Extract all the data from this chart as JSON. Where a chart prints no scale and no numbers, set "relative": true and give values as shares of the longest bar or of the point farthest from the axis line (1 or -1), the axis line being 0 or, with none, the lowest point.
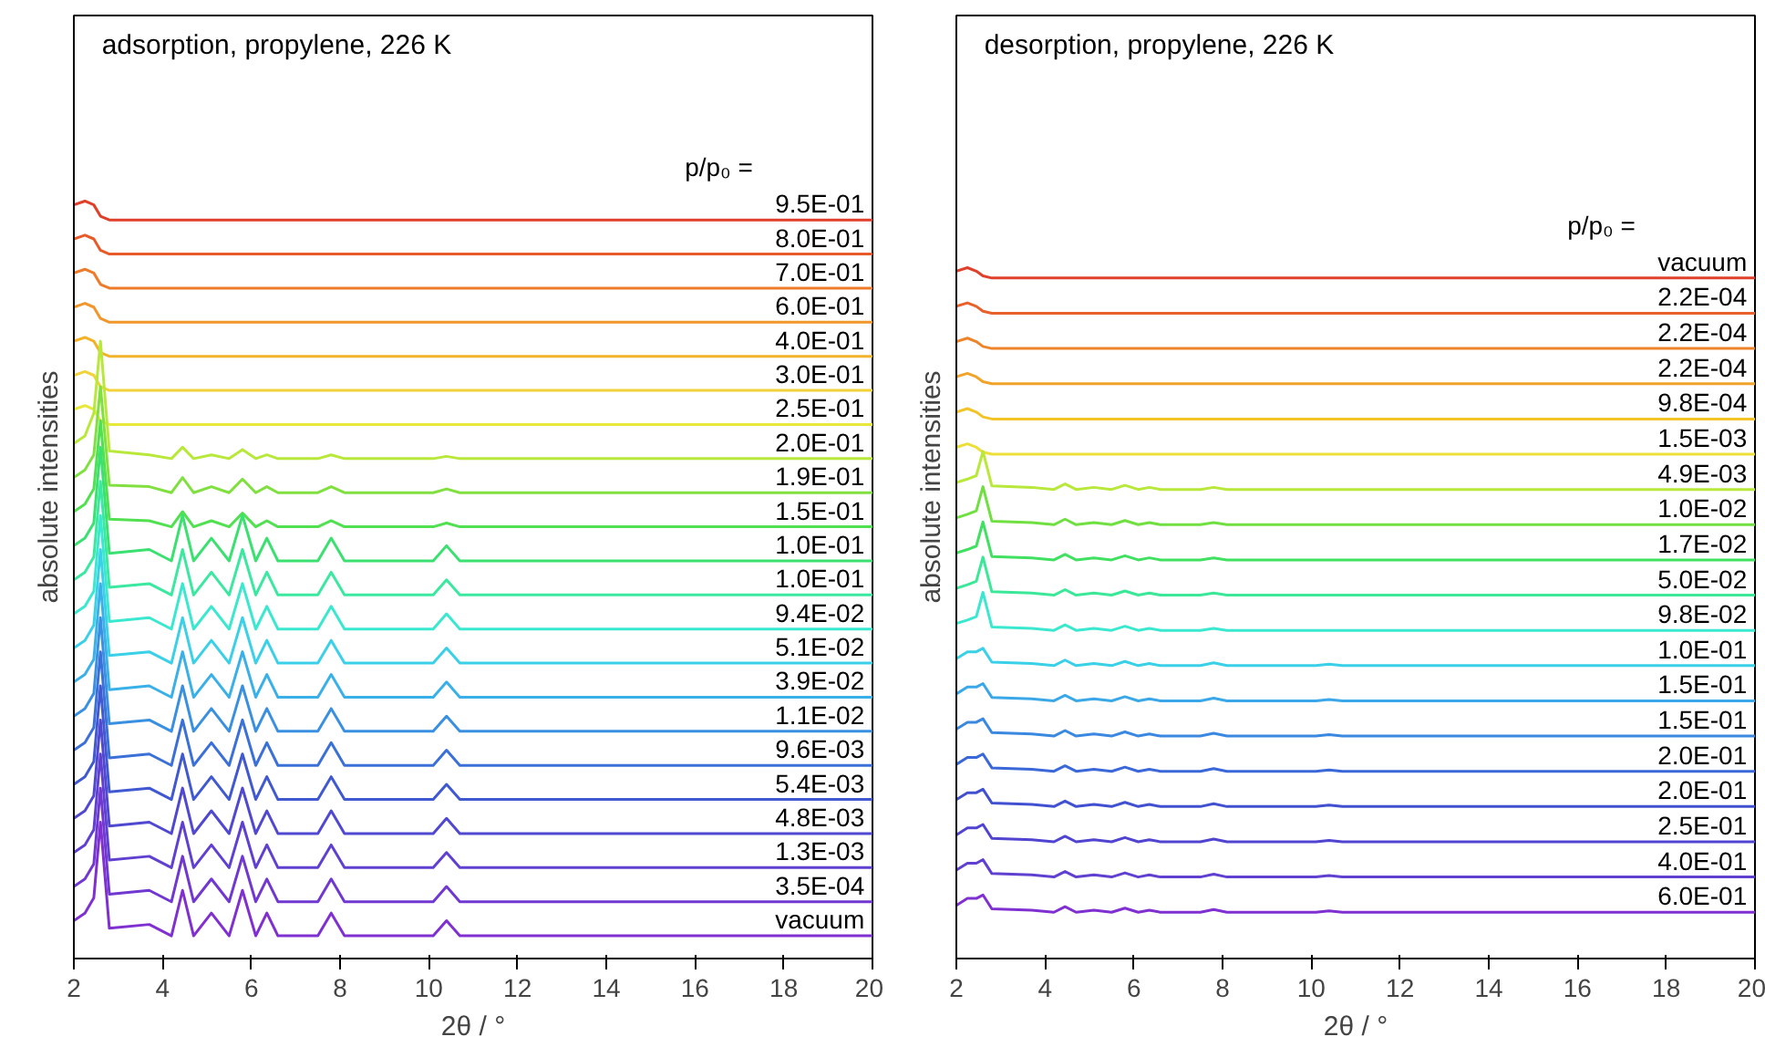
{
  "chart_data": [
    {
      "type": "line",
      "title": "adsorption, propylene, 226 K",
      "xlabel": "2θ / °",
      "ylabel": "absolute intensities",
      "legend_title": "p/p₀ =",
      "relative": true,
      "xlim": [
        2,
        20
      ],
      "xticks": [
        2,
        4,
        6,
        8,
        10,
        12,
        14,
        16,
        18,
        20
      ],
      "x": [
        2,
        2.25,
        2.45,
        2.6,
        2.8,
        3.7,
        4.2,
        4.45,
        4.7,
        5.1,
        5.5,
        5.8,
        6.1,
        6.35,
        6.6,
        7.5,
        7.8,
        8.1,
        10.1,
        10.4,
        10.7,
        20
      ],
      "series": [
        {
          "name": "9.5E-01",
          "color": "#e0402a",
          "values": [
            0.995,
            1.0,
            0.995,
            0.98,
            0.975,
            0.975,
            0.975,
            0.975,
            0.975,
            0.975,
            0.975,
            0.975,
            0.975,
            0.975,
            0.975,
            0.975,
            0.975,
            0.975,
            0.975,
            0.975,
            0.975,
            0.975
          ]
        },
        {
          "name": "8.0E-01",
          "color": "#e85a2a",
          "values": [
            0.95,
            0.955,
            0.95,
            0.935,
            0.93,
            0.93,
            0.93,
            0.93,
            0.93,
            0.93,
            0.93,
            0.93,
            0.93,
            0.93,
            0.93,
            0.93,
            0.93,
            0.93,
            0.93,
            0.93,
            0.93,
            0.93
          ]
        },
        {
          "name": "7.0E-01",
          "color": "#ee7a2a",
          "values": [
            0.905,
            0.91,
            0.905,
            0.89,
            0.885,
            0.885,
            0.885,
            0.885,
            0.885,
            0.885,
            0.885,
            0.885,
            0.885,
            0.885,
            0.885,
            0.885,
            0.885,
            0.885,
            0.885,
            0.885,
            0.885,
            0.885
          ]
        },
        {
          "name": "6.0E-01",
          "color": "#f0962a",
          "values": [
            0.86,
            0.865,
            0.86,
            0.845,
            0.84,
            0.84,
            0.84,
            0.84,
            0.84,
            0.84,
            0.84,
            0.84,
            0.84,
            0.84,
            0.84,
            0.84,
            0.84,
            0.84,
            0.84,
            0.84,
            0.84,
            0.84
          ]
        },
        {
          "name": "4.0E-01",
          "color": "#f2b22a",
          "values": [
            0.815,
            0.82,
            0.815,
            0.8,
            0.795,
            0.795,
            0.795,
            0.795,
            0.795,
            0.795,
            0.795,
            0.795,
            0.795,
            0.795,
            0.795,
            0.795,
            0.795,
            0.795,
            0.795,
            0.795,
            0.795,
            0.795
          ]
        },
        {
          "name": "3.0E-01",
          "color": "#f2d23a",
          "values": [
            0.77,
            0.775,
            0.77,
            0.755,
            0.75,
            0.75,
            0.75,
            0.75,
            0.75,
            0.75,
            0.75,
            0.75,
            0.75,
            0.75,
            0.75,
            0.75,
            0.75,
            0.75,
            0.75,
            0.75,
            0.75,
            0.75
          ]
        },
        {
          "name": "2.5E-01",
          "color": "#e8e83a",
          "values": [
            0.725,
            0.73,
            0.725,
            0.71,
            0.705,
            0.705,
            0.705,
            0.705,
            0.705,
            0.705,
            0.705,
            0.705,
            0.705,
            0.705,
            0.705,
            0.705,
            0.705,
            0.705,
            0.705,
            0.705,
            0.705,
            0.705
          ]
        },
        {
          "name": "2.0E-01",
          "color": "#b8e83a",
          "values": [
            0.68,
            0.69,
            0.72,
            0.815,
            0.67,
            0.665,
            0.66,
            0.675,
            0.66,
            0.665,
            0.66,
            0.672,
            0.66,
            0.665,
            0.66,
            0.66,
            0.665,
            0.66,
            0.66,
            0.663,
            0.66,
            0.66
          ]
        },
        {
          "name": "1.9E-01",
          "color": "#80e040",
          "values": [
            0.635,
            0.645,
            0.665,
            0.755,
            0.625,
            0.623,
            0.615,
            0.635,
            0.615,
            0.623,
            0.615,
            0.633,
            0.615,
            0.623,
            0.615,
            0.615,
            0.623,
            0.615,
            0.615,
            0.62,
            0.615,
            0.615
          ]
        },
        {
          "name": "1.5E-01",
          "color": "#50e050",
          "values": [
            0.59,
            0.6,
            0.62,
            0.71,
            0.58,
            0.578,
            0.57,
            0.59,
            0.57,
            0.578,
            0.57,
            0.588,
            0.57,
            0.578,
            0.57,
            0.57,
            0.578,
            0.57,
            0.57,
            0.575,
            0.57,
            0.57
          ]
        },
        {
          "name": "1.0E-01",
          "color": "#3ae070",
          "values": [
            0.545,
            0.555,
            0.575,
            0.675,
            0.535,
            0.54,
            0.525,
            0.585,
            0.525,
            0.555,
            0.525,
            0.585,
            0.525,
            0.555,
            0.525,
            0.525,
            0.555,
            0.525,
            0.525,
            0.545,
            0.525,
            0.525
          ]
        },
        {
          "name": "1.0E-01",
          "color": "#3ae8a0",
          "values": [
            0.5,
            0.51,
            0.53,
            0.63,
            0.49,
            0.495,
            0.48,
            0.54,
            0.48,
            0.51,
            0.48,
            0.54,
            0.48,
            0.51,
            0.48,
            0.48,
            0.51,
            0.48,
            0.48,
            0.5,
            0.48,
            0.48
          ]
        },
        {
          "name": "9.4E-02",
          "color": "#3ae8d0",
          "values": [
            0.455,
            0.465,
            0.485,
            0.585,
            0.445,
            0.45,
            0.435,
            0.495,
            0.435,
            0.465,
            0.435,
            0.495,
            0.435,
            0.465,
            0.435,
            0.435,
            0.465,
            0.435,
            0.435,
            0.455,
            0.435,
            0.435
          ]
        },
        {
          "name": "5.1E-02",
          "color": "#3ad0e8",
          "values": [
            0.41,
            0.42,
            0.44,
            0.54,
            0.4,
            0.405,
            0.39,
            0.45,
            0.39,
            0.42,
            0.39,
            0.45,
            0.39,
            0.42,
            0.39,
            0.39,
            0.42,
            0.39,
            0.39,
            0.41,
            0.39,
            0.39
          ]
        },
        {
          "name": "3.9E-02",
          "color": "#3ab0e8",
          "values": [
            0.365,
            0.375,
            0.395,
            0.495,
            0.355,
            0.36,
            0.345,
            0.405,
            0.345,
            0.375,
            0.345,
            0.405,
            0.345,
            0.375,
            0.345,
            0.345,
            0.375,
            0.345,
            0.345,
            0.365,
            0.345,
            0.345
          ]
        },
        {
          "name": "1.1E-02",
          "color": "#3a90e0",
          "values": [
            0.32,
            0.33,
            0.35,
            0.45,
            0.31,
            0.315,
            0.3,
            0.36,
            0.3,
            0.33,
            0.3,
            0.36,
            0.3,
            0.33,
            0.3,
            0.3,
            0.33,
            0.3,
            0.3,
            0.32,
            0.3,
            0.3
          ]
        },
        {
          "name": "9.6E-03",
          "color": "#3a70d8",
          "values": [
            0.275,
            0.285,
            0.305,
            0.405,
            0.265,
            0.27,
            0.255,
            0.315,
            0.255,
            0.285,
            0.255,
            0.315,
            0.255,
            0.285,
            0.255,
            0.255,
            0.285,
            0.255,
            0.255,
            0.275,
            0.255,
            0.255
          ]
        },
        {
          "name": "5.4E-03",
          "color": "#4058d0",
          "values": [
            0.23,
            0.24,
            0.26,
            0.36,
            0.22,
            0.225,
            0.21,
            0.27,
            0.21,
            0.24,
            0.21,
            0.27,
            0.21,
            0.24,
            0.21,
            0.21,
            0.24,
            0.21,
            0.21,
            0.23,
            0.21,
            0.21
          ]
        },
        {
          "name": "4.8E-03",
          "color": "#5048d0",
          "values": [
            0.185,
            0.195,
            0.215,
            0.315,
            0.175,
            0.18,
            0.165,
            0.225,
            0.165,
            0.195,
            0.165,
            0.225,
            0.165,
            0.195,
            0.165,
            0.165,
            0.195,
            0.165,
            0.165,
            0.185,
            0.165,
            0.165
          ]
        },
        {
          "name": "1.3E-03",
          "color": "#6040d0",
          "values": [
            0.14,
            0.15,
            0.17,
            0.27,
            0.13,
            0.135,
            0.12,
            0.18,
            0.12,
            0.15,
            0.12,
            0.18,
            0.12,
            0.15,
            0.12,
            0.12,
            0.15,
            0.12,
            0.12,
            0.14,
            0.12,
            0.12
          ]
        },
        {
          "name": "3.5E-04",
          "color": "#7038d0",
          "values": [
            0.095,
            0.105,
            0.125,
            0.225,
            0.085,
            0.09,
            0.075,
            0.135,
            0.075,
            0.105,
            0.075,
            0.135,
            0.075,
            0.105,
            0.075,
            0.075,
            0.105,
            0.075,
            0.075,
            0.095,
            0.075,
            0.075
          ]
        },
        {
          "name": "vacuum",
          "color": "#8030d0",
          "values": [
            0.05,
            0.06,
            0.08,
            0.18,
            0.04,
            0.045,
            0.03,
            0.09,
            0.03,
            0.06,
            0.03,
            0.09,
            0.03,
            0.06,
            0.03,
            0.03,
            0.06,
            0.03,
            0.03,
            0.05,
            0.03,
            0.03
          ]
        }
      ]
    },
    {
      "type": "line",
      "title": "desorption, propylene, 226 K",
      "xlabel": "2θ / °",
      "ylabel": "absolute intensities",
      "legend_title": "p/p₀ =",
      "relative": true,
      "xlim": [
        2,
        20
      ],
      "xticks": [
        2,
        4,
        6,
        8,
        10,
        12,
        14,
        16,
        18,
        20
      ],
      "x": [
        2,
        2.25,
        2.45,
        2.6,
        2.8,
        3.7,
        4.2,
        4.45,
        4.7,
        5.1,
        5.5,
        5.8,
        6.1,
        6.35,
        6.6,
        7.5,
        7.8,
        8.1,
        10.1,
        10.4,
        10.7,
        20
      ],
      "series": [
        {
          "name": "vacuum",
          "color": "#e0402a",
          "values": [
            0.995,
            1.0,
            0.995,
            0.988,
            0.985,
            0.985,
            0.985,
            0.985,
            0.985,
            0.985,
            0.985,
            0.985,
            0.985,
            0.985,
            0.985,
            0.985,
            0.985,
            0.985,
            0.985,
            0.985,
            0.985,
            0.985
          ]
        },
        {
          "name": "2.2E-04",
          "color": "#e8602a",
          "values": [
            0.944,
            0.949,
            0.944,
            0.937,
            0.934,
            0.934,
            0.934,
            0.934,
            0.934,
            0.934,
            0.934,
            0.934,
            0.934,
            0.934,
            0.934,
            0.934,
            0.934,
            0.934,
            0.934,
            0.934,
            0.934,
            0.934
          ]
        },
        {
          "name": "2.2E-04",
          "color": "#ee842a",
          "values": [
            0.893,
            0.898,
            0.893,
            0.886,
            0.883,
            0.883,
            0.883,
            0.883,
            0.883,
            0.883,
            0.883,
            0.883,
            0.883,
            0.883,
            0.883,
            0.883,
            0.883,
            0.883,
            0.883,
            0.883,
            0.883,
            0.883
          ]
        },
        {
          "name": "2.2E-04",
          "color": "#f0a42a",
          "values": [
            0.842,
            0.847,
            0.842,
            0.835,
            0.832,
            0.832,
            0.832,
            0.832,
            0.832,
            0.832,
            0.832,
            0.832,
            0.832,
            0.832,
            0.832,
            0.832,
            0.832,
            0.832,
            0.832,
            0.832,
            0.832,
            0.832
          ]
        },
        {
          "name": "9.8E-04",
          "color": "#f2c42a",
          "values": [
            0.791,
            0.796,
            0.791,
            0.784,
            0.781,
            0.781,
            0.781,
            0.781,
            0.781,
            0.781,
            0.781,
            0.781,
            0.781,
            0.781,
            0.781,
            0.781,
            0.781,
            0.781,
            0.781,
            0.781,
            0.781,
            0.781
          ]
        },
        {
          "name": "1.5E-03",
          "color": "#ecdf3a",
          "values": [
            0.74,
            0.745,
            0.74,
            0.733,
            0.73,
            0.73,
            0.73,
            0.73,
            0.73,
            0.73,
            0.73,
            0.73,
            0.73,
            0.73,
            0.73,
            0.73,
            0.73,
            0.73,
            0.73,
            0.73,
            0.73,
            0.73
          ]
        },
        {
          "name": "4.9E-03",
          "color": "#b8e83a",
          "values": [
            0.689,
            0.694,
            0.699,
            0.734,
            0.684,
            0.682,
            0.679,
            0.687,
            0.679,
            0.682,
            0.679,
            0.685,
            0.679,
            0.682,
            0.679,
            0.679,
            0.682,
            0.679,
            0.679,
            0.679,
            0.679,
            0.679
          ]
        },
        {
          "name": "1.0E-02",
          "color": "#70e040",
          "values": [
            0.638,
            0.643,
            0.648,
            0.683,
            0.633,
            0.631,
            0.628,
            0.636,
            0.628,
            0.631,
            0.628,
            0.634,
            0.628,
            0.631,
            0.628,
            0.628,
            0.631,
            0.628,
            0.628,
            0.628,
            0.628,
            0.628
          ]
        },
        {
          "name": "1.7E-02",
          "color": "#40e060",
          "values": [
            0.587,
            0.592,
            0.597,
            0.632,
            0.582,
            0.58,
            0.577,
            0.585,
            0.577,
            0.58,
            0.577,
            0.583,
            0.577,
            0.58,
            0.577,
            0.577,
            0.58,
            0.577,
            0.577,
            0.577,
            0.577,
            0.577
          ]
        },
        {
          "name": "5.0E-02",
          "color": "#3ae898",
          "values": [
            0.536,
            0.541,
            0.546,
            0.581,
            0.531,
            0.529,
            0.526,
            0.534,
            0.526,
            0.529,
            0.526,
            0.532,
            0.526,
            0.529,
            0.526,
            0.526,
            0.529,
            0.526,
            0.526,
            0.526,
            0.526,
            0.526
          ]
        },
        {
          "name": "9.8E-02",
          "color": "#3ae8d0",
          "values": [
            0.485,
            0.49,
            0.495,
            0.53,
            0.48,
            0.478,
            0.475,
            0.483,
            0.475,
            0.478,
            0.475,
            0.481,
            0.475,
            0.478,
            0.475,
            0.475,
            0.478,
            0.475,
            0.475,
            0.475,
            0.475,
            0.475
          ]
        },
        {
          "name": "1.0E-01",
          "color": "#3ad0e8",
          "values": [
            0.434,
            0.444,
            0.444,
            0.449,
            0.429,
            0.427,
            0.424,
            0.432,
            0.424,
            0.427,
            0.424,
            0.43,
            0.424,
            0.427,
            0.424,
            0.424,
            0.428,
            0.424,
            0.424,
            0.426,
            0.424,
            0.424
          ]
        },
        {
          "name": "1.5E-01",
          "color": "#3aa8e8",
          "values": [
            0.383,
            0.393,
            0.393,
            0.398,
            0.378,
            0.376,
            0.373,
            0.381,
            0.373,
            0.376,
            0.373,
            0.379,
            0.373,
            0.376,
            0.373,
            0.373,
            0.377,
            0.373,
            0.373,
            0.375,
            0.373,
            0.373
          ]
        },
        {
          "name": "1.5E-01",
          "color": "#3a88e0",
          "values": [
            0.332,
            0.342,
            0.342,
            0.347,
            0.327,
            0.325,
            0.322,
            0.33,
            0.322,
            0.325,
            0.322,
            0.328,
            0.322,
            0.325,
            0.322,
            0.322,
            0.326,
            0.322,
            0.322,
            0.324,
            0.322,
            0.322
          ]
        },
        {
          "name": "2.0E-01",
          "color": "#3a68d8",
          "values": [
            0.281,
            0.291,
            0.291,
            0.296,
            0.276,
            0.274,
            0.271,
            0.279,
            0.271,
            0.274,
            0.271,
            0.277,
            0.271,
            0.274,
            0.271,
            0.271,
            0.275,
            0.271,
            0.271,
            0.273,
            0.271,
            0.271
          ]
        },
        {
          "name": "2.0E-01",
          "color": "#4050d0",
          "values": [
            0.23,
            0.24,
            0.24,
            0.245,
            0.225,
            0.223,
            0.22,
            0.228,
            0.22,
            0.223,
            0.22,
            0.226,
            0.22,
            0.223,
            0.22,
            0.22,
            0.224,
            0.22,
            0.22,
            0.222,
            0.22,
            0.22
          ]
        },
        {
          "name": "2.5E-01",
          "color": "#5044d0",
          "values": [
            0.179,
            0.189,
            0.189,
            0.194,
            0.174,
            0.172,
            0.169,
            0.177,
            0.169,
            0.172,
            0.169,
            0.175,
            0.169,
            0.172,
            0.169,
            0.169,
            0.173,
            0.169,
            0.169,
            0.171,
            0.169,
            0.169
          ]
        },
        {
          "name": "4.0E-01",
          "color": "#6040d0",
          "values": [
            0.128,
            0.138,
            0.138,
            0.143,
            0.123,
            0.121,
            0.118,
            0.126,
            0.118,
            0.121,
            0.118,
            0.124,
            0.118,
            0.121,
            0.118,
            0.118,
            0.122,
            0.118,
            0.118,
            0.12,
            0.118,
            0.118
          ]
        },
        {
          "name": "6.0E-01",
          "color": "#8030d0",
          "values": [
            0.077,
            0.087,
            0.087,
            0.092,
            0.072,
            0.07,
            0.067,
            0.075,
            0.067,
            0.07,
            0.067,
            0.073,
            0.067,
            0.07,
            0.067,
            0.067,
            0.071,
            0.067,
            0.067,
            0.069,
            0.067,
            0.067
          ]
        }
      ]
    }
  ]
}
